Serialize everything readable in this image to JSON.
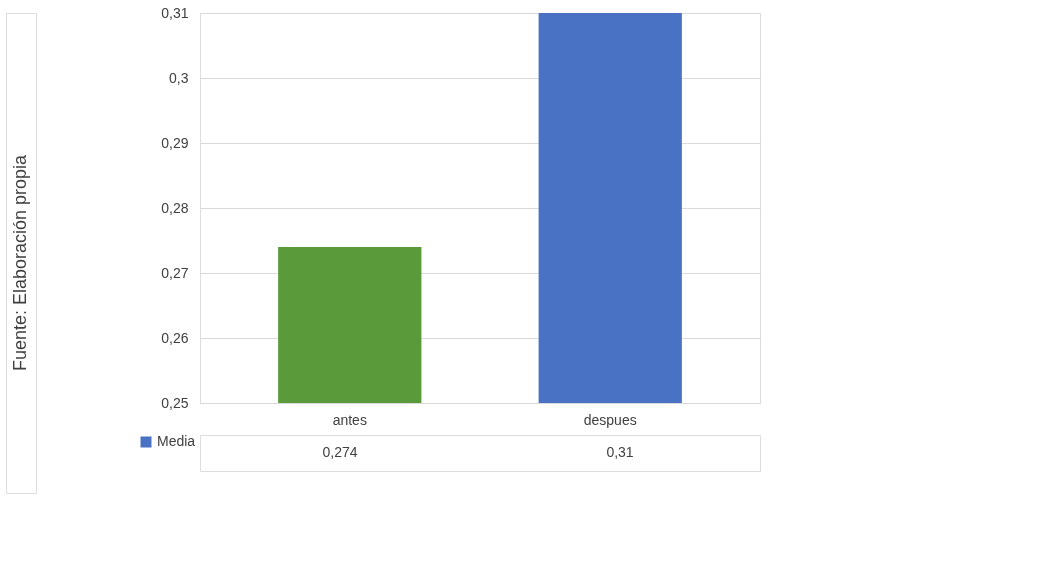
{
  "chart_data": {
    "type": "bar",
    "categories": [
      "antes",
      "despues"
    ],
    "series": [
      {
        "name": "Media",
        "values": [
          0.274,
          0.31
        ],
        "value_labels": [
          "0,274",
          "0,31"
        ]
      }
    ],
    "colors": [
      "#5a9a3a",
      "#4a72c4"
    ],
    "ylim": [
      0.25,
      0.31
    ],
    "yticks": [
      {
        "value": 0.25,
        "label": "0,25"
      },
      {
        "value": 0.26,
        "label": "0,26"
      },
      {
        "value": 0.27,
        "label": "0,27"
      },
      {
        "value": 0.28,
        "label": "0,28"
      },
      {
        "value": 0.29,
        "label": "0,29"
      },
      {
        "value": 0.3,
        "label": "0,3"
      },
      {
        "value": 0.31,
        "label": "0,31"
      }
    ],
    "grid": "y",
    "legend": "bottom",
    "annotations": [
      "Fuente: Elaboración propia"
    ]
  }
}
